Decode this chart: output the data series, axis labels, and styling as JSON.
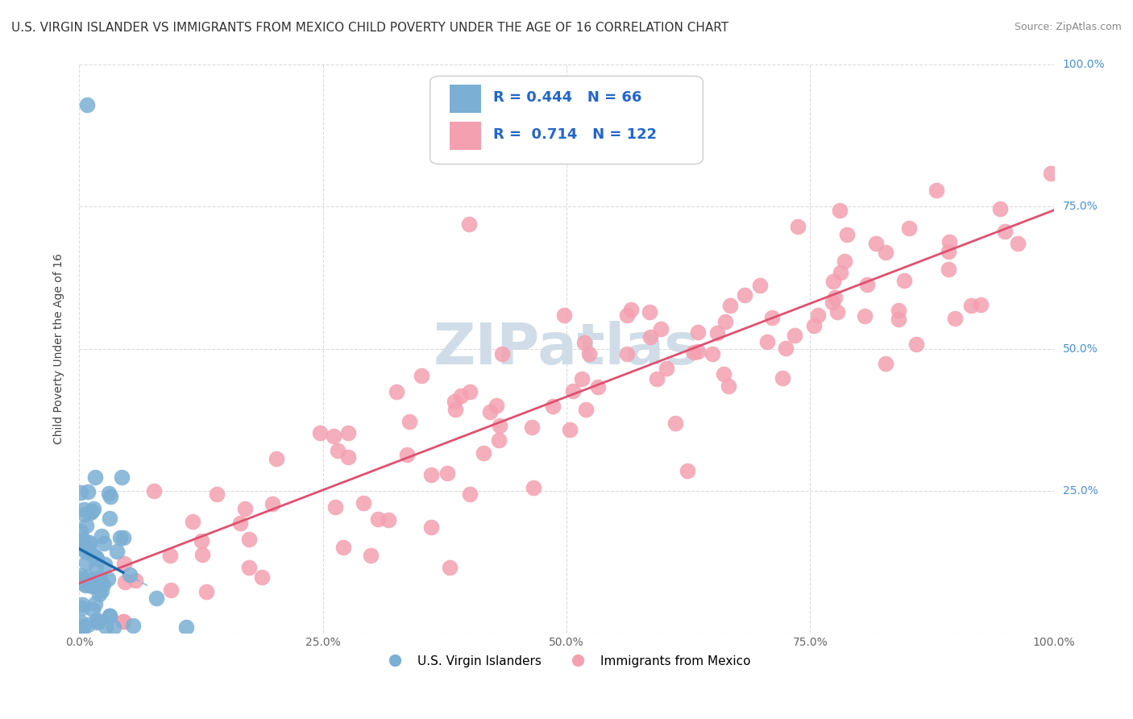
{
  "title": "U.S. VIRGIN ISLANDER VS IMMIGRANTS FROM MEXICO CHILD POVERTY UNDER THE AGE OF 16 CORRELATION CHART",
  "source": "Source: ZipAtlas.com",
  "ylabel": "Child Poverty Under the Age of 16",
  "xlim": [
    0.0,
    1.0
  ],
  "ylim": [
    0.0,
    1.0
  ],
  "ytick_labels": [
    "",
    "25.0%",
    "50.0%",
    "75.0%",
    "100.0%"
  ],
  "ytick_values": [
    0.0,
    0.25,
    0.5,
    0.75,
    1.0
  ],
  "grid_color": "#cccccc",
  "background_color": "#ffffff",
  "watermark_text": "ZIPatlas",
  "watermark_color": "#d0dde8",
  "legend_R1": "0.444",
  "legend_N1": "66",
  "legend_R2": "0.714",
  "legend_N2": "122",
  "blue_color": "#7bafd4",
  "pink_color": "#f4a0b0",
  "trendline_blue_color": "#1a6aad",
  "trendline_pink_color": "#e05070",
  "legend_label1": "U.S. Virgin Islanders",
  "legend_label2": "Immigrants from Mexico",
  "title_fontsize": 11,
  "source_fontsize": 9,
  "label_fontsize": 10,
  "tick_fontsize": 10
}
